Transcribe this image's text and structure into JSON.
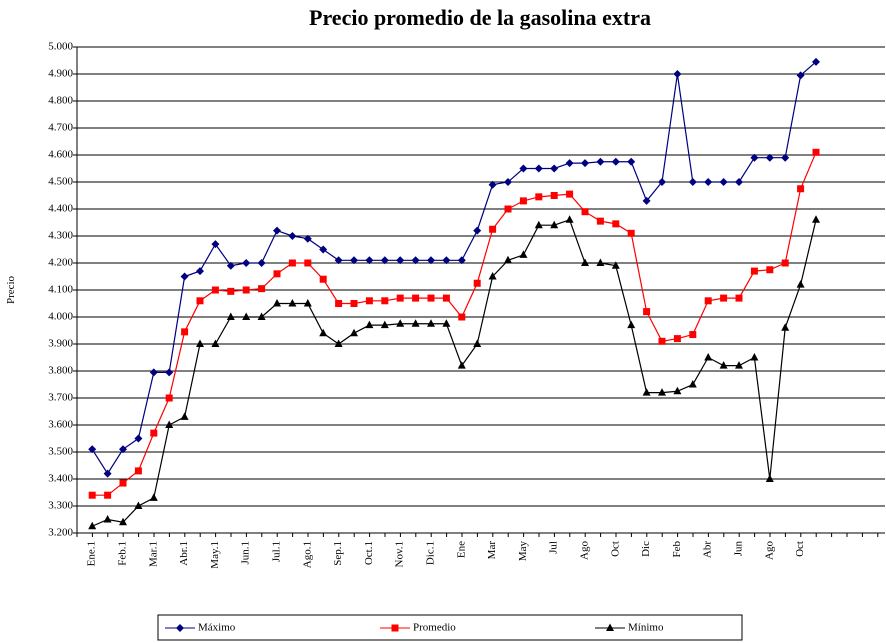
{
  "chart_data": {
    "type": "line",
    "title": "Precio promedio de la gasolina extra",
    "y_label": "Precio",
    "categories": [
      "Ene.1",
      null,
      "Feb.1",
      null,
      "Mar.1",
      null,
      "Abr.1",
      null,
      "May.1",
      null,
      "Jun.1",
      null,
      "Jul.1",
      null,
      "Ago.1",
      null,
      "Sep.1",
      null,
      "Oct.1",
      null,
      "Nov.1",
      null,
      "Dic.1",
      null,
      "Ene",
      null,
      "Mar",
      null,
      "May",
      null,
      "Jul",
      null,
      "Ago",
      null,
      "Oct",
      null,
      "Dic",
      null,
      "Feb",
      null,
      "Abr",
      null,
      "Jun",
      null,
      "Ago",
      null,
      "Oct",
      null,
      null,
      null,
      null,
      null
    ],
    "series": [
      {
        "name": "Máximo",
        "color": "#000080",
        "marker": "diamond",
        "values": [
          3.51,
          3.42,
          3.51,
          3.55,
          3.795,
          3.795,
          4.15,
          4.17,
          4.27,
          4.19,
          4.2,
          4.2,
          4.32,
          4.3,
          4.29,
          4.25,
          4.21,
          4.21,
          4.21,
          4.21,
          4.21,
          4.21,
          4.21,
          4.21,
          4.21,
          4.32,
          4.49,
          4.5,
          4.55,
          4.55,
          4.55,
          4.57,
          4.57,
          4.575,
          4.575,
          4.575,
          4.43,
          4.5,
          4.9,
          4.5,
          4.5,
          4.5,
          4.5,
          4.59,
          4.59,
          4.59,
          4.895,
          4.945,
          null,
          null,
          null,
          null
        ]
      },
      {
        "name": "Promedio",
        "color": "#ff0000",
        "marker": "square",
        "values": [
          3.34,
          3.34,
          3.385,
          3.43,
          3.57,
          3.7,
          3.945,
          4.06,
          4.1,
          4.095,
          4.1,
          4.105,
          4.16,
          4.2,
          4.2,
          4.14,
          4.05,
          4.05,
          4.06,
          4.06,
          4.07,
          4.07,
          4.07,
          4.07,
          4.0,
          4.125,
          4.325,
          4.4,
          4.43,
          4.445,
          4.45,
          4.455,
          4.39,
          4.355,
          4.345,
          4.31,
          4.02,
          3.91,
          3.92,
          3.935,
          4.06,
          4.07,
          4.07,
          4.17,
          4.175,
          4.2,
          4.475,
          4.61,
          null,
          null,
          null,
          null
        ]
      },
      {
        "name": "Mínimo",
        "color": "#000000",
        "marker": "triangle",
        "values": [
          3.225,
          3.25,
          3.24,
          3.3,
          3.33,
          3.6,
          3.63,
          3.9,
          3.9,
          4.0,
          4.0,
          4.0,
          4.05,
          4.05,
          4.05,
          3.94,
          3.9,
          3.94,
          3.97,
          3.97,
          3.975,
          3.975,
          3.975,
          3.975,
          3.82,
          3.9,
          4.15,
          4.21,
          4.23,
          4.34,
          4.34,
          4.36,
          4.2,
          4.2,
          4.19,
          3.97,
          3.72,
          3.72,
          3.725,
          3.75,
          3.85,
          3.82,
          3.82,
          3.85,
          3.4,
          3.96,
          4.12,
          4.36,
          null,
          null,
          null,
          null
        ]
      }
    ],
    "ylim": [
      3.2,
      5.0
    ],
    "yticks": [
      {
        "value": 3.2,
        "label": "3.200"
      },
      {
        "value": 3.3,
        "label": "3.300"
      },
      {
        "value": 3.4,
        "label": "3.400"
      },
      {
        "value": 3.5,
        "label": "3.500"
      },
      {
        "value": 3.6,
        "label": "3.600"
      },
      {
        "value": 3.7,
        "label": "3.700"
      },
      {
        "value": 3.8,
        "label": "3.800"
      },
      {
        "value": 3.9,
        "label": "3.900"
      },
      {
        "value": 4.0,
        "label": "4.000"
      },
      {
        "value": 4.1,
        "label": "4.100"
      },
      {
        "value": 4.2,
        "label": "4.200"
      },
      {
        "value": 4.3,
        "label": "4.300"
      },
      {
        "value": 4.4,
        "label": "4.400"
      },
      {
        "value": 4.5,
        "label": "4.500"
      },
      {
        "value": 4.6,
        "label": "4.600"
      },
      {
        "value": 4.7,
        "label": "4.700"
      },
      {
        "value": 4.8,
        "label": "4.800"
      },
      {
        "value": 4.9,
        "label": "4.900"
      },
      {
        "value": 5.0,
        "label": "5.000"
      }
    ],
    "grid": true,
    "legend": "bottom"
  }
}
